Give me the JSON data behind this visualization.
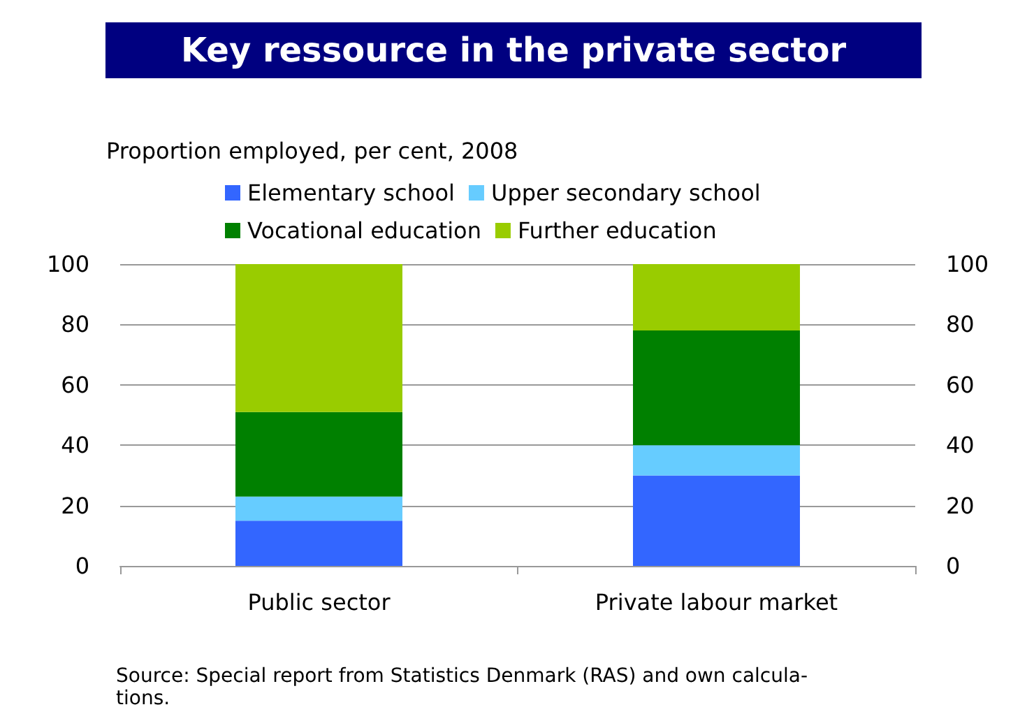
{
  "chart_data": {
    "type": "bar",
    "title": "Key ressource in the private sector",
    "ylabel": "Proportion employed, per cent, 2008",
    "categories": [
      "Public sector",
      "Private labour market"
    ],
    "stacked": true,
    "series": [
      {
        "name": "Elementary school",
        "color": "#3366ff",
        "values": [
          15,
          30
        ]
      },
      {
        "name": "Upper secondary school",
        "color": "#66ccff",
        "values": [
          8,
          10
        ]
      },
      {
        "name": "Vocational education",
        "color": "#008000",
        "values": [
          28,
          38
        ]
      },
      {
        "name": "Further education",
        "color": "#99cc00",
        "values": [
          49,
          22
        ]
      }
    ],
    "ylim": [
      0,
      100
    ],
    "yticks": [
      0,
      20,
      40,
      60,
      80,
      100
    ],
    "y2lim": [
      0,
      100
    ],
    "y2ticks": [
      0,
      20,
      40,
      60,
      80,
      100
    ],
    "grid": "y",
    "legend": "top",
    "annotations": [
      "Source: Special report from Statistics Denmark (RAS) and own calcula-\ntions."
    ]
  }
}
